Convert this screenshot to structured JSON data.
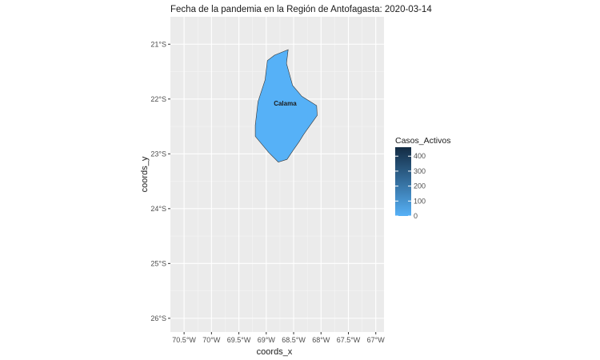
{
  "chart_data": {
    "type": "map",
    "title": "Fecha de la pandemia en la Región de Antofagasta: 2020-03-14",
    "xlabel": "coords_x",
    "ylabel": "coords_y",
    "x_ticks": [
      "70.5°W",
      "70°W",
      "69.5°W",
      "69°W",
      "68.5°W",
      "68°W",
      "67.5°W",
      "67°W"
    ],
    "y_ticks": [
      "21°S",
      "22°S",
      "23°S",
      "24°S",
      "25°S",
      "26°S"
    ],
    "x_range": [
      -70.75,
      -66.85
    ],
    "y_range": [
      -26.25,
      -20.5
    ],
    "regions": [
      {
        "name": "Calama",
        "casos_activos": 0,
        "fill": "#56b1f7",
        "outline": [
          [
            -68.6,
            -21.1
          ],
          [
            -68.63,
            -21.35
          ],
          [
            -68.52,
            -21.75
          ],
          [
            -68.35,
            -21.95
          ],
          [
            -68.08,
            -22.12
          ],
          [
            -68.07,
            -22.3
          ],
          [
            -68.2,
            -22.48
          ],
          [
            -68.32,
            -22.65
          ],
          [
            -68.4,
            -22.78
          ],
          [
            -68.52,
            -22.95
          ],
          [
            -68.62,
            -23.1
          ],
          [
            -68.78,
            -23.15
          ],
          [
            -68.95,
            -22.98
          ],
          [
            -69.2,
            -22.68
          ],
          [
            -69.2,
            -22.48
          ],
          [
            -69.15,
            -22.05
          ],
          [
            -69.02,
            -21.65
          ],
          [
            -68.98,
            -21.3
          ],
          [
            -68.85,
            -21.2
          ]
        ]
      }
    ],
    "legend": {
      "title": "Casos_Activos",
      "position": "right",
      "breaks": [
        0,
        100,
        200,
        300,
        400
      ],
      "limits": [
        0,
        460
      ],
      "low_color": "#56b1f7",
      "high_color": "#132b43"
    },
    "background": "#ebebeb",
    "grid": true
  }
}
